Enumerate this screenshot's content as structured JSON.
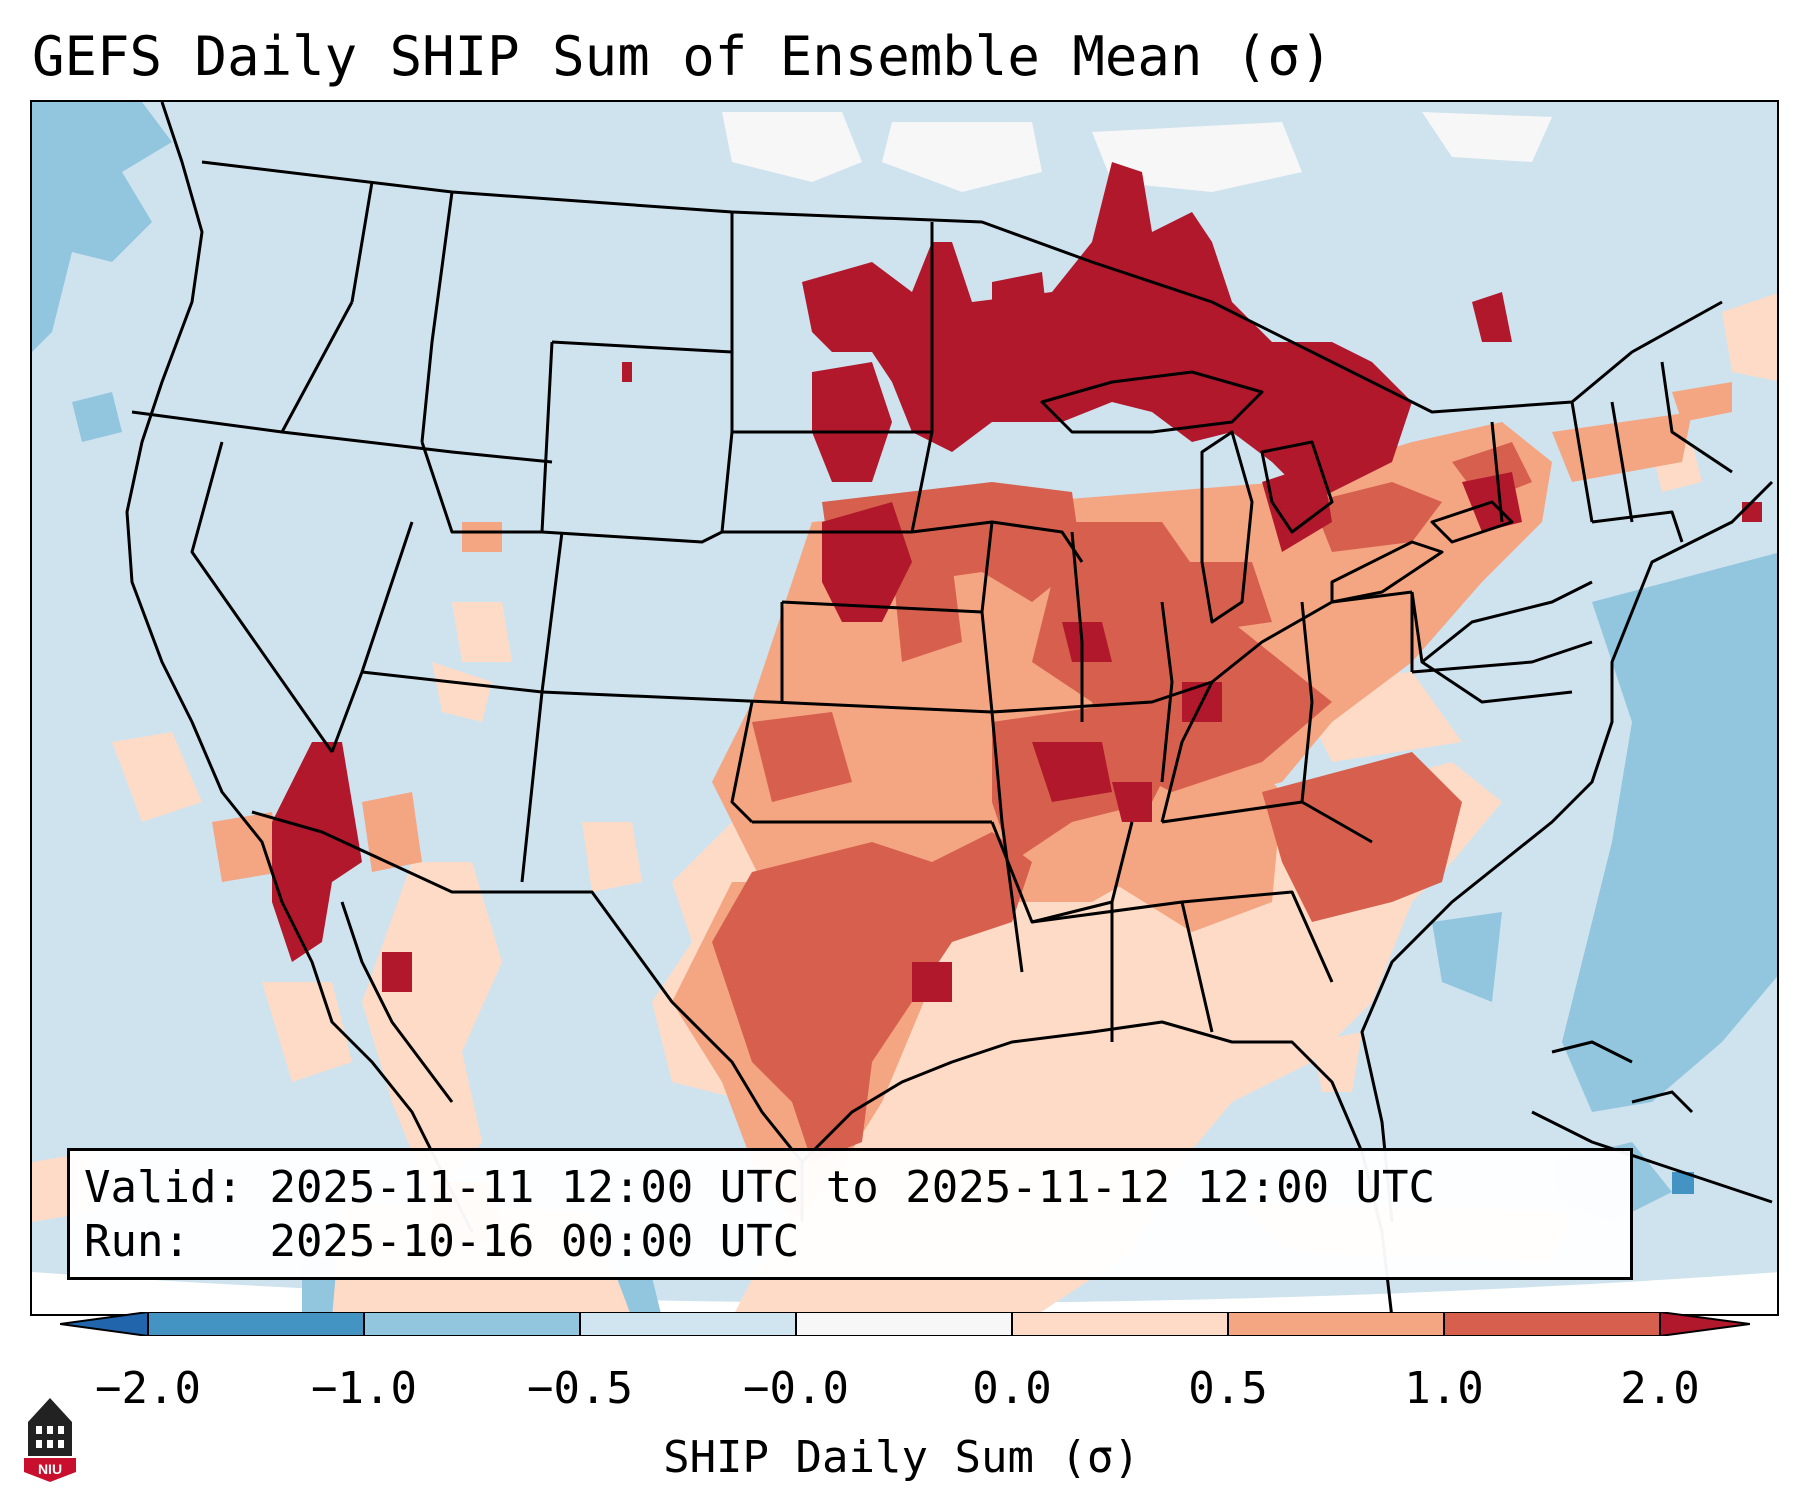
{
  "title": "GEFS Daily SHIP Sum of Ensemble Mean (σ)",
  "info": {
    "valid_label": "Valid:",
    "valid_value": "2025-11-11 12:00 UTC to 2025-11-12 12:00 UTC",
    "run_label": "Run:",
    "run_value": "2025-10-16 00:00 UTC"
  },
  "colorbar": {
    "label": "SHIP Daily Sum (σ)",
    "ticks": [
      "−2.0",
      "−1.0",
      "−0.5",
      "−0.0",
      "0.0",
      "0.5",
      "1.0",
      "2.0"
    ],
    "bins": [
      {
        "range": "< -2.0",
        "color": "#2166ac"
      },
      {
        "range": "-2.0 to -1.0",
        "color": "#4393c3"
      },
      {
        "range": "-1.0 to -0.5",
        "color": "#92c5de"
      },
      {
        "range": "-0.5 to -0.0",
        "color": "#d1e5f0"
      },
      {
        "range": "-0.0 to 0.0",
        "color": "#f7f7f7"
      },
      {
        "range": "0.0 to 0.5",
        "color": "#fddbc7"
      },
      {
        "range": "0.5 to 1.0",
        "color": "#f4a582"
      },
      {
        "range": "1.0 to 2.0",
        "color": "#d6604d"
      },
      {
        "range": "> 2.0",
        "color": "#b2182b"
      }
    ]
  },
  "map": {
    "region": "Contiguous United States",
    "field": "SHIP daily sum standardized anomaly",
    "pattern": [
      {
        "area": "Upper Midwest / Great Lakes / Northeast Minnesota-Wisconsin-Michigan",
        "level": "> 2.0"
      },
      {
        "area": "Eastern Dakotas / Nebraska",
        "level": "> 2.0"
      },
      {
        "area": "Southern California coast",
        "level": "> 2.0"
      },
      {
        "area": "Ozarks / Mid-South",
        "level": "1.0 to 2.0"
      },
      {
        "area": "Southern Plains / Texas",
        "level": "1.0 to 2.0"
      },
      {
        "area": "Southeast / Carolinas",
        "level": "0.5 to 1.0"
      },
      {
        "area": "Western US / Rockies",
        "level": "-0.5 to -0.0"
      },
      {
        "area": "Western Atlantic",
        "level": "-1.0 to -0.5"
      }
    ]
  },
  "logo": {
    "text": "NIU",
    "color": "#c8102e"
  }
}
